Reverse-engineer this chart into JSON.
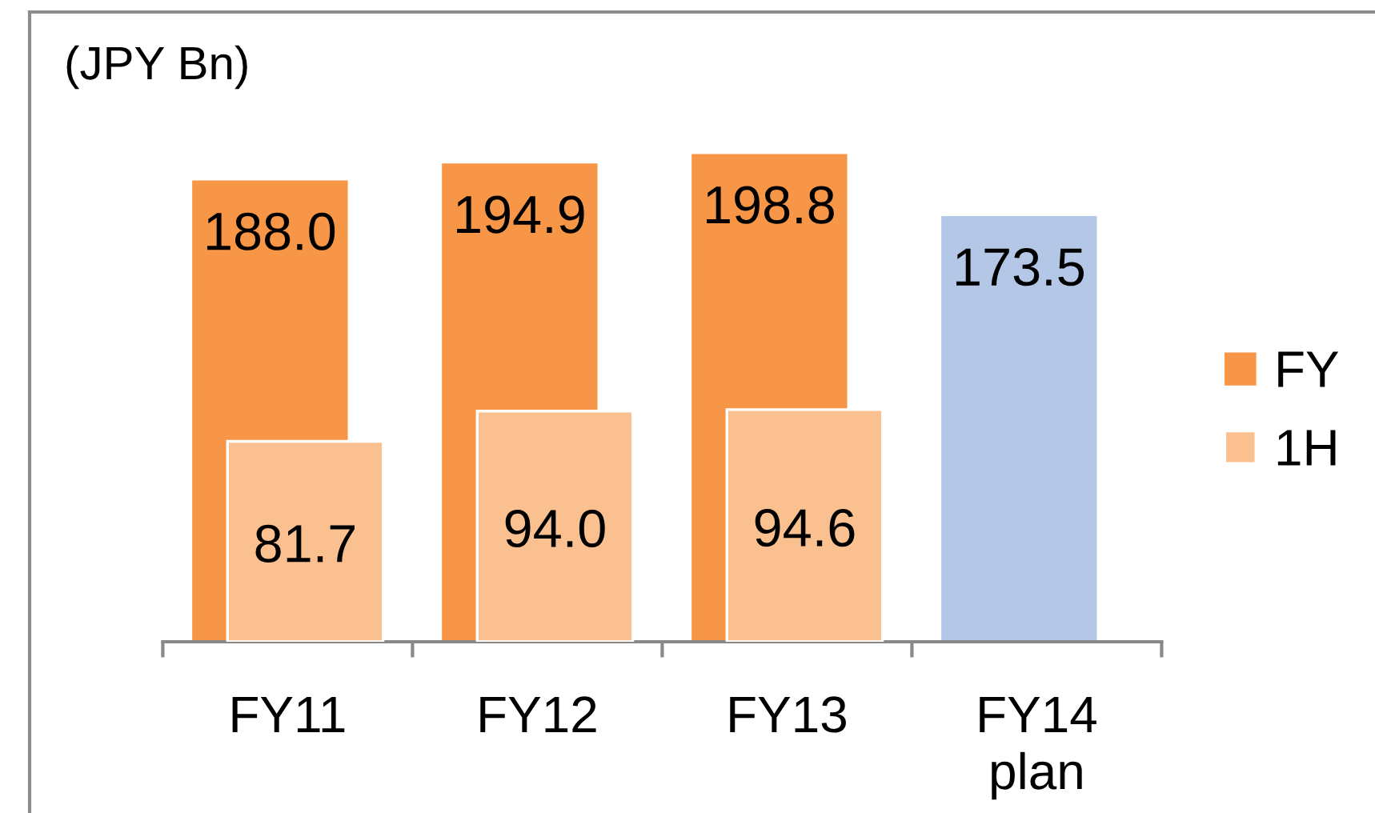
{
  "chart_data": {
    "type": "bar",
    "categories": [
      "FY11",
      "FY12",
      "FY13",
      "FY14\nplan"
    ],
    "series": [
      {
        "name": "FY",
        "color": "#f79646",
        "colors": [
          "#f79646",
          "#f79646",
          "#f79646",
          "#b4c7e7"
        ],
        "values": [
          188.0,
          194.9,
          198.8,
          173.5
        ],
        "value_labels": [
          "188.0",
          "194.9",
          "198.8",
          "173.5"
        ]
      },
      {
        "name": "1H",
        "color": "#fac090",
        "values": [
          81.7,
          94.0,
          94.6,
          null
        ],
        "value_labels": [
          "81.7",
          "94.0",
          "94.6",
          null
        ]
      }
    ],
    "legend": "right",
    "annotations": [
      "(JPY Bn)"
    ]
  }
}
